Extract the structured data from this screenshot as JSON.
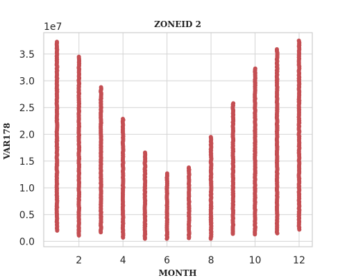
{
  "chart_data": {
    "type": "scatter",
    "title": "ZONEID 2",
    "xlabel": "MONTH",
    "ylabel": "VAR178",
    "y_offset_label": "1e7",
    "xlim": [
      0.4,
      12.6
    ],
    "ylim": [
      -1000000,
      39000000
    ],
    "x_ticks": [
      2,
      4,
      6,
      8,
      10,
      12
    ],
    "x_tick_labels": [
      "2",
      "4",
      "6",
      "8",
      "10",
      "12"
    ],
    "y_ticks": [
      0,
      5000000,
      10000000,
      15000000,
      20000000,
      25000000,
      30000000,
      35000000
    ],
    "y_tick_labels": [
      "0.0",
      "0.5",
      "1.0",
      "1.5",
      "2.0",
      "2.5",
      "3.0",
      "3.5"
    ],
    "grid": true,
    "marker_color": "#c44e52",
    "series": [
      {
        "month": 1,
        "min": 2000000,
        "max": 37300000
      },
      {
        "month": 2,
        "min": 1100000,
        "max": 34500000
      },
      {
        "month": 3,
        "min": 1700000,
        "max": 28800000
      },
      {
        "month": 4,
        "min": 700000,
        "max": 22900000
      },
      {
        "month": 5,
        "min": 500000,
        "max": 16600000
      },
      {
        "month": 6,
        "min": 500000,
        "max": 12700000
      },
      {
        "month": 7,
        "min": 600000,
        "max": 13800000
      },
      {
        "month": 8,
        "min": 500000,
        "max": 19500000
      },
      {
        "month": 9,
        "min": 1400000,
        "max": 25800000
      },
      {
        "month": 10,
        "min": 1300000,
        "max": 32300000
      },
      {
        "month": 11,
        "min": 1500000,
        "max": 35900000
      },
      {
        "month": 12,
        "min": 2200000,
        "max": 37500000
      }
    ]
  }
}
